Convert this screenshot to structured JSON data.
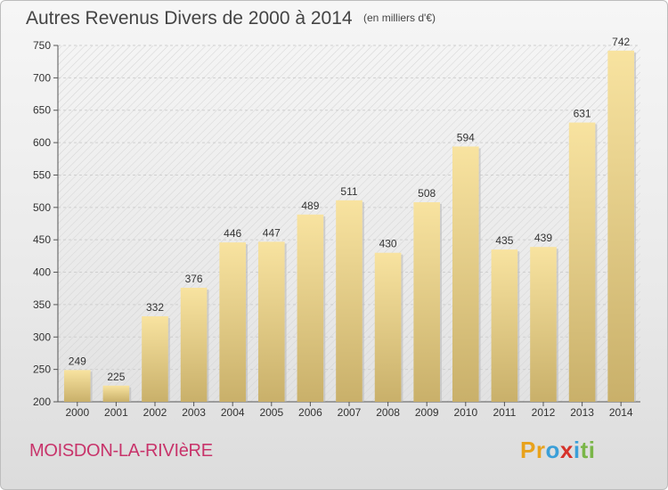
{
  "title": "Autres Revenus Divers de 2000 à 2014",
  "subtitle": "(en milliers d'€)",
  "commune": "MOISDON-LA-RIVIèRE",
  "logo": {
    "letters": [
      "P",
      "r",
      "o",
      "x",
      "i",
      "t",
      "i"
    ],
    "colors": [
      "#e8a21c",
      "#e8a21c",
      "#3a9fd8",
      "#d6322a",
      "#3a9fd8",
      "#7ab648",
      "#7ab648"
    ]
  },
  "colors": {
    "commune_text": "#c8336a",
    "bar_top": "#f8e3a0",
    "bar_bottom": "#c9b06a",
    "axis": "#555555"
  },
  "chart_data": {
    "type": "bar",
    "categories": [
      "2000",
      "2001",
      "2002",
      "2003",
      "2004",
      "2005",
      "2006",
      "2007",
      "2008",
      "2009",
      "2010",
      "2011",
      "2012",
      "2013",
      "2014"
    ],
    "values": [
      249,
      225,
      332,
      376,
      446,
      447,
      489,
      511,
      430,
      508,
      594,
      435,
      439,
      631,
      742
    ],
    "ylim": [
      200,
      750
    ],
    "yticks": [
      200,
      250,
      300,
      350,
      400,
      450,
      500,
      550,
      600,
      650,
      700,
      750
    ],
    "grid": true,
    "data_labels": true
  }
}
